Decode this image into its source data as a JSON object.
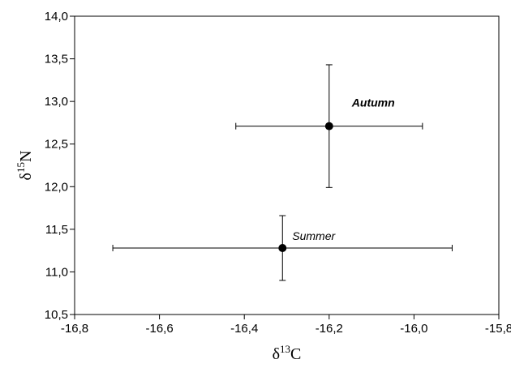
{
  "chart_data": {
    "type": "scatter",
    "title": "",
    "xlabel": {
      "base": "δ",
      "sup": "13",
      "elem": "C"
    },
    "ylabel": {
      "base": "δ",
      "sup": "15",
      "elem": "N"
    },
    "xlim": [
      -16.8,
      -15.8
    ],
    "ylim": [
      10.5,
      14.0
    ],
    "x_ticks": [
      -16.8,
      -16.6,
      -16.4,
      -16.2,
      -16.0,
      -15.8
    ],
    "x_tick_labels": [
      "-16,8",
      "-16,6",
      "-16,4",
      "-16,2",
      "-16,0",
      "-15,8"
    ],
    "y_ticks": [
      10.5,
      11.0,
      11.5,
      12.0,
      12.5,
      13.0,
      13.5,
      14.0
    ],
    "y_tick_labels": [
      "10,5",
      "11,0",
      "11,5",
      "12,0",
      "12,5",
      "13,0",
      "13,5",
      "14,0"
    ],
    "grid": false,
    "legend": "none",
    "points": [
      {
        "label": "Autumn",
        "label_bold": true,
        "label_pos": "upper-right",
        "x": -16.2,
        "y": 12.71,
        "x_err": 0.22,
        "y_err": 0.72
      },
      {
        "label": "Summer",
        "label_bold": false,
        "label_pos": "upper-right",
        "x": -16.31,
        "y": 11.28,
        "x_err": 0.4,
        "y_err": 0.38
      }
    ],
    "marker_color": "#000000"
  }
}
